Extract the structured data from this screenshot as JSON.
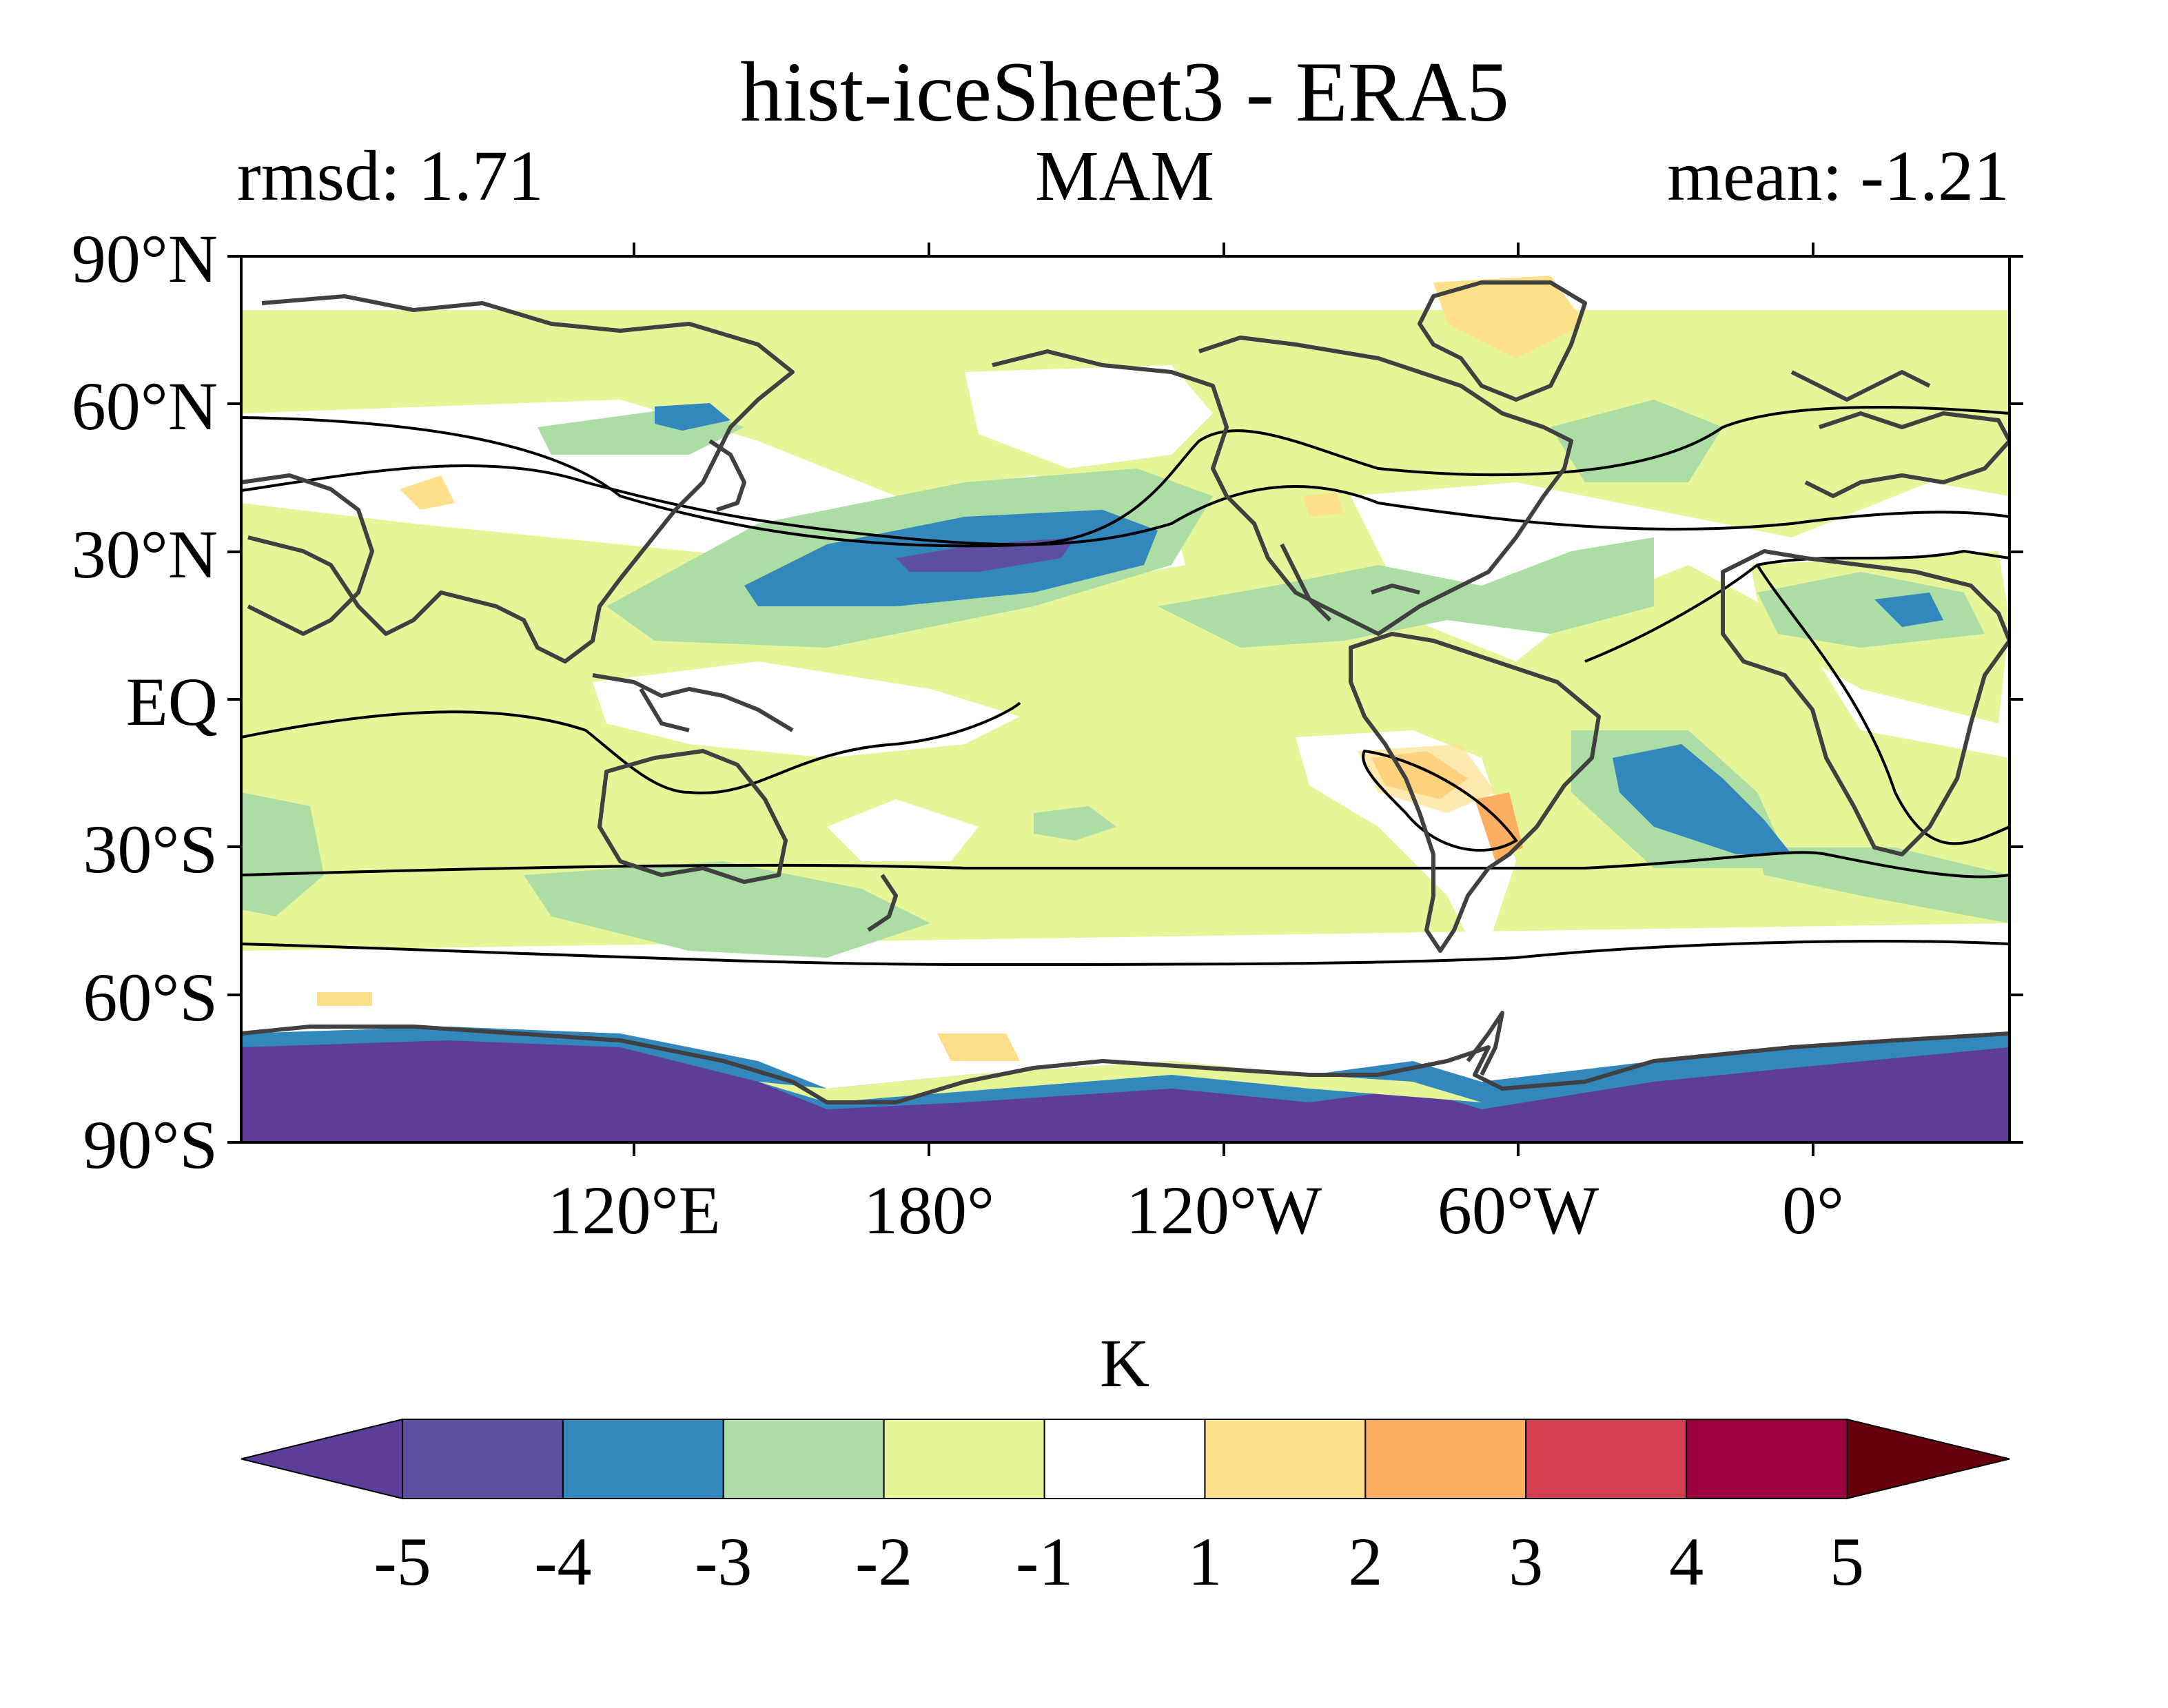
{
  "title": "hist-iceSheet3 - ERA5",
  "left_subtitle": "rmsd: 1.71",
  "center_subtitle": "MAM",
  "right_subtitle": "mean: -1.21",
  "y_tick_labels": [
    "90°N",
    "60°N",
    "30°N",
    "EQ",
    "30°S",
    "60°S",
    "90°S"
  ],
  "x_tick_labels": [
    "120°E",
    "180°",
    "120°W",
    "60°W",
    "0°"
  ],
  "colorbar": {
    "label": "K",
    "levels": [
      "-5",
      "-4",
      "-3",
      "-2",
      "-1",
      "1",
      "2",
      "3",
      "4",
      "5"
    ],
    "colors": [
      "#5e3c99",
      "#5e4fa2",
      "#3288bd",
      "#abdda4",
      "#e6f598",
      "#ffffff",
      "#fee08b",
      "#fdae61",
      "#d53e4f",
      "#9e0142",
      "#67000d"
    ]
  },
  "map": {
    "projection": "plate carree, centered 150°W (lon 40°E–400°E)",
    "coastline_color": "#404040",
    "contour_color": "#000000",
    "features": [
      "Strong cold anomaly (<-4 K) over Antarctica interior",
      "Cold core (-3 to -5 K) in central North Pacific ~30°N",
      "Cold anomaly (-3 to -4 K) in South Atlantic off Brazil",
      "Warm anomaly (+1 to +2 K) west of Peru / over Argentina",
      "Weak cold anomalies (-1 to -2 K) over most oceans"
    ]
  }
}
